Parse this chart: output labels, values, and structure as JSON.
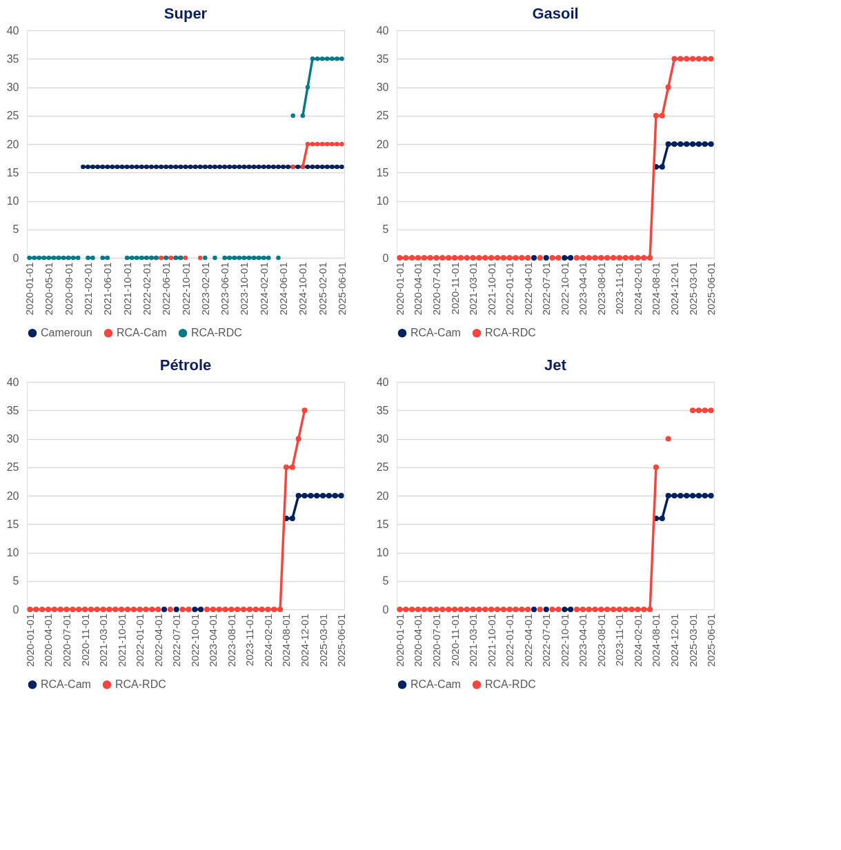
{
  "chart_data": [
    {
      "type": "line",
      "title": "Super",
      "ylim": [
        0,
        40
      ],
      "yticks": [
        0,
        5,
        10,
        15,
        20,
        25,
        30,
        35,
        40
      ],
      "grid": "y",
      "legend": "bottom",
      "marker": "circle",
      "line_style": "solid",
      "categories": [
        "2020-01-01",
        null,
        null,
        null,
        "2020-05-01",
        null,
        null,
        null,
        "2020-09-01",
        null,
        null,
        null,
        "2021-02-01",
        null,
        null,
        null,
        "2021-06-01",
        null,
        null,
        null,
        "2021-10-01",
        null,
        null,
        null,
        "2022-02-01",
        null,
        null,
        null,
        "2022-06-01",
        null,
        null,
        null,
        "2022-10-01",
        null,
        null,
        null,
        "2023-02-01",
        null,
        null,
        null,
        "2023-06-01",
        null,
        null,
        null,
        "2023-10-01",
        null,
        null,
        null,
        "2024-02-01",
        null,
        null,
        null,
        "2024-06-01",
        null,
        null,
        null,
        "2024-10-01",
        null,
        null,
        null,
        "2025-02-01",
        null,
        null,
        null,
        "2025-06-01"
      ],
      "series": [
        {
          "name": "Cameroun",
          "color": "#002060",
          "values": [
            null,
            null,
            null,
            null,
            null,
            null,
            null,
            null,
            null,
            null,
            null,
            16,
            16,
            16,
            16,
            16,
            16,
            16,
            16,
            16,
            16,
            16,
            16,
            16,
            16,
            16,
            16,
            16,
            16,
            16,
            16,
            16,
            16,
            16,
            16,
            16,
            16,
            16,
            16,
            16,
            16,
            16,
            16,
            16,
            16,
            16,
            16,
            16,
            16,
            16,
            16,
            16,
            16,
            16,
            16,
            16,
            16,
            16,
            16,
            16,
            16,
            16,
            16,
            16,
            16
          ]
        },
        {
          "name": "RCA-Cam",
          "color": "#f8453c",
          "values": [
            null,
            null,
            null,
            null,
            null,
            null,
            null,
            null,
            null,
            null,
            null,
            null,
            null,
            null,
            null,
            null,
            null,
            null,
            null,
            null,
            null,
            null,
            null,
            null,
            null,
            0,
            0,
            0,
            0,
            0,
            0,
            0,
            0,
            null,
            null,
            0,
            null,
            null,
            null,
            null,
            null,
            null,
            null,
            null,
            null,
            null,
            null,
            null,
            null,
            null,
            null,
            null,
            null,
            null,
            16,
            null,
            16,
            20,
            20,
            20,
            20,
            20,
            20,
            20,
            20
          ]
        },
        {
          "name": "RCA-RDC",
          "color": "#007a88",
          "values": [
            0,
            0,
            0,
            0,
            0,
            0,
            0,
            0,
            0,
            0,
            0,
            null,
            0,
            0,
            null,
            0,
            0,
            null,
            null,
            null,
            0,
            0,
            0,
            0,
            0,
            0,
            0,
            null,
            0,
            null,
            0,
            0,
            null,
            null,
            null,
            null,
            0,
            null,
            0,
            null,
            0,
            0,
            0,
            0,
            0,
            0,
            0,
            0,
            0,
            0,
            null,
            0,
            null,
            null,
            25,
            null,
            25,
            30,
            35,
            35,
            35,
            35,
            35,
            35,
            35
          ]
        }
      ]
    },
    {
      "type": "line",
      "title": "Gasoil",
      "ylim": [
        0,
        40
      ],
      "yticks": [
        0,
        5,
        10,
        15,
        20,
        25,
        30,
        35,
        40
      ],
      "grid": "y",
      "legend": "bottom",
      "marker": "circle",
      "line_style": "solid",
      "categories": [
        "2020-01-01",
        null,
        null,
        "2020-04-01",
        null,
        null,
        "2020-07-01",
        null,
        null,
        "2020-11-01",
        null,
        null,
        "2021-03-01",
        null,
        null,
        "2021-10-01",
        null,
        null,
        "2022-01-01",
        null,
        null,
        "2022-04-01",
        null,
        null,
        "2022-07-01",
        null,
        null,
        "2022-10-01",
        null,
        null,
        "2023-04-01",
        null,
        null,
        "2023-08-01",
        null,
        null,
        "2023-11-01",
        null,
        null,
        "2024-02-01",
        null,
        null,
        "2024-08-01",
        null,
        null,
        "2024-12-01",
        null,
        null,
        "2025-03-01",
        null,
        null,
        "2025-06-01"
      ],
      "series": [
        {
          "name": "RCA-Cam",
          "color": "#002060",
          "values": [
            null,
            null,
            null,
            null,
            null,
            null,
            null,
            null,
            null,
            null,
            null,
            null,
            null,
            null,
            null,
            null,
            null,
            null,
            null,
            null,
            null,
            null,
            0,
            null,
            0,
            null,
            null,
            0,
            0,
            null,
            null,
            null,
            null,
            null,
            null,
            null,
            null,
            null,
            null,
            null,
            null,
            null,
            16,
            16,
            20,
            20,
            20,
            20,
            20,
            20,
            20,
            20
          ]
        },
        {
          "name": "RCA-RDC",
          "color": "#f8453c",
          "values": [
            0,
            0,
            0,
            0,
            0,
            0,
            0,
            0,
            0,
            0,
            0,
            0,
            0,
            0,
            0,
            0,
            0,
            0,
            0,
            0,
            0,
            0,
            null,
            0,
            null,
            0,
            0,
            null,
            null,
            0,
            0,
            0,
            0,
            0,
            0,
            0,
            0,
            0,
            0,
            0,
            0,
            0,
            25,
            25,
            30,
            35,
            35,
            35,
            35,
            35,
            35,
            35
          ]
        }
      ]
    },
    {
      "type": "line",
      "title": "Pétrole",
      "ylim": [
        0,
        40
      ],
      "yticks": [
        0,
        5,
        10,
        15,
        20,
        25,
        30,
        35,
        40
      ],
      "grid": "y",
      "legend": "bottom",
      "marker": "circle",
      "line_style": "solid",
      "categories": [
        "2020-01-01",
        null,
        null,
        "2020-04-01",
        null,
        null,
        "2020-07-01",
        null,
        null,
        "2020-11-01",
        null,
        null,
        "2021-03-01",
        null,
        null,
        "2021-10-01",
        null,
        null,
        "2022-01-01",
        null,
        null,
        "2022-04-01",
        null,
        null,
        "2022-07-01",
        null,
        null,
        "2022-10-01",
        null,
        null,
        "2023-04-01",
        null,
        null,
        "2023-08-01",
        null,
        null,
        "2023-11-01",
        null,
        null,
        "2024-02-01",
        null,
        null,
        "2024-08-01",
        null,
        null,
        "2024-12-01",
        null,
        null,
        "2025-03-01",
        null,
        null,
        "2025-06-01"
      ],
      "series": [
        {
          "name": "RCA-Cam",
          "color": "#002060",
          "values": [
            null,
            null,
            null,
            null,
            null,
            null,
            null,
            null,
            null,
            null,
            null,
            null,
            null,
            null,
            null,
            null,
            null,
            null,
            null,
            null,
            null,
            null,
            0,
            null,
            0,
            null,
            null,
            0,
            0,
            null,
            null,
            null,
            null,
            null,
            null,
            null,
            null,
            null,
            null,
            null,
            null,
            null,
            16,
            16,
            20,
            20,
            20,
            20,
            20,
            20,
            20,
            20
          ]
        },
        {
          "name": "RCA-RDC",
          "color": "#f8453c",
          "values": [
            0,
            0,
            0,
            0,
            0,
            0,
            0,
            0,
            0,
            0,
            0,
            0,
            0,
            0,
            0,
            0,
            0,
            0,
            0,
            0,
            0,
            0,
            null,
            0,
            null,
            0,
            0,
            null,
            null,
            0,
            0,
            0,
            0,
            0,
            0,
            0,
            0,
            0,
            0,
            0,
            0,
            0,
            25,
            25,
            30,
            35,
            null,
            null,
            null,
            null,
            null,
            null
          ]
        }
      ]
    },
    {
      "type": "line",
      "title": "Jet",
      "ylim": [
        0,
        40
      ],
      "yticks": [
        0,
        5,
        10,
        15,
        20,
        25,
        30,
        35,
        40
      ],
      "grid": "y",
      "legend": "bottom",
      "marker": "circle",
      "line_style": "solid",
      "categories": [
        "2020-01-01",
        null,
        null,
        "2020-04-01",
        null,
        null,
        "2020-07-01",
        null,
        null,
        "2020-11-01",
        null,
        null,
        "2021-03-01",
        null,
        null,
        "2021-10-01",
        null,
        null,
        "2022-01-01",
        null,
        null,
        "2022-04-01",
        null,
        null,
        "2022-07-01",
        null,
        null,
        "2022-10-01",
        null,
        null,
        "2023-04-01",
        null,
        null,
        "2023-08-01",
        null,
        null,
        "2023-11-01",
        null,
        null,
        "2024-02-01",
        null,
        null,
        "2024-08-01",
        null,
        null,
        "2024-12-01",
        null,
        null,
        "2025-03-01",
        null,
        null,
        "2025-06-01"
      ],
      "series": [
        {
          "name": "RCA-Cam",
          "color": "#002060",
          "values": [
            null,
            null,
            null,
            null,
            null,
            null,
            null,
            null,
            null,
            null,
            null,
            null,
            null,
            null,
            null,
            null,
            null,
            null,
            null,
            null,
            null,
            null,
            0,
            null,
            0,
            null,
            null,
            0,
            0,
            null,
            null,
            null,
            null,
            null,
            null,
            null,
            null,
            null,
            null,
            null,
            null,
            null,
            16,
            16,
            20,
            20,
            20,
            20,
            20,
            20,
            20,
            20
          ]
        },
        {
          "name": "RCA-RDC",
          "color": "#f8453c",
          "values": [
            0,
            0,
            0,
            0,
            0,
            0,
            0,
            0,
            0,
            0,
            0,
            0,
            0,
            0,
            0,
            0,
            0,
            0,
            0,
            0,
            0,
            0,
            null,
            0,
            null,
            0,
            0,
            null,
            null,
            0,
            0,
            0,
            0,
            0,
            0,
            0,
            0,
            0,
            0,
            0,
            0,
            0,
            25,
            null,
            30,
            null,
            null,
            null,
            35,
            35,
            35,
            35
          ]
        }
      ]
    }
  ]
}
